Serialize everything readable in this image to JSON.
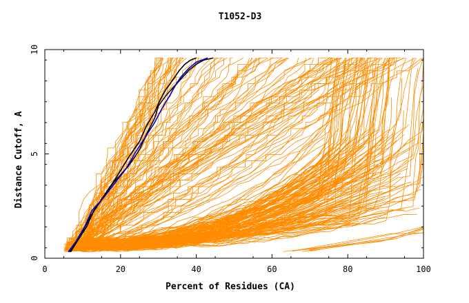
{
  "chart_data": {
    "type": "line",
    "title": "T1052-D3",
    "xlabel": "Percent of Residues (CA)",
    "ylabel": "Distance Cutoff, A",
    "xlim": [
      0,
      100
    ],
    "ylim": [
      0,
      10
    ],
    "x_ticks": [
      0,
      20,
      40,
      60,
      80,
      100
    ],
    "y_ticks": [
      0,
      5,
      10
    ],
    "grid": false,
    "legend": "none",
    "colors": {
      "bundle": "#ff8c00",
      "highlight_black": "#000000",
      "highlight_blue": "#0000cc",
      "axis": "#000000"
    },
    "highlighted_series": [
      {
        "color": "#000000",
        "x": [
          6.5,
          8,
          10,
          12,
          15,
          18,
          22,
          25,
          27,
          29,
          30,
          32,
          34,
          36,
          38,
          40,
          42,
          44.5
        ],
        "y": [
          0.3,
          0.7,
          1.3,
          2.0,
          2.8,
          3.6,
          4.4,
          5.2,
          6.0,
          6.7,
          7.3,
          7.8,
          8.2,
          8.6,
          9.0,
          9.3,
          9.5,
          9.6
        ]
      },
      {
        "color": "#000000",
        "x": [
          6.8,
          8.5,
          11,
          13,
          16,
          19,
          22,
          25,
          27,
          29,
          30.5,
          32,
          34,
          35.5,
          37,
          38.5,
          40
        ],
        "y": [
          0.3,
          0.8,
          1.5,
          2.3,
          3.1,
          3.9,
          4.8,
          5.6,
          6.4,
          7.0,
          7.6,
          8.1,
          8.6,
          9.0,
          9.3,
          9.5,
          9.6
        ]
      },
      {
        "color": "#0000cc",
        "x": [
          6.2,
          8.2,
          10.5,
          12.5,
          15.5,
          18.5,
          21.5,
          24,
          26.5,
          29,
          31,
          33,
          34.5,
          36,
          38,
          40,
          43
        ],
        "y": [
          0.3,
          0.8,
          1.5,
          2.3,
          2.9,
          3.6,
          4.3,
          5.1,
          5.8,
          6.5,
          7.2,
          7.8,
          8.3,
          8.7,
          9.1,
          9.4,
          9.6
        ]
      }
    ]
  }
}
